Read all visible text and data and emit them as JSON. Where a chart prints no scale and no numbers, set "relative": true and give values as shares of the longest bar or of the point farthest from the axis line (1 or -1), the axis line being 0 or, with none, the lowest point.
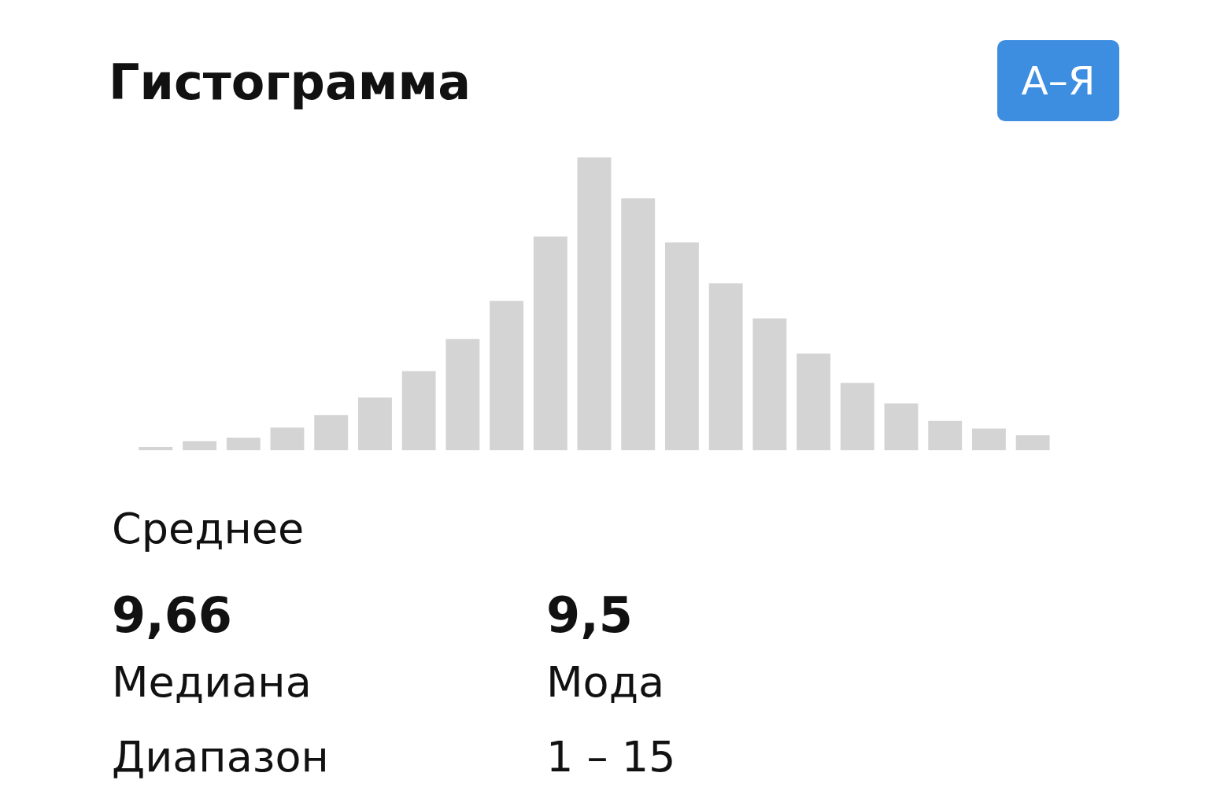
{
  "chart_data": {
    "type": "bar",
    "title": "Гистограмма",
    "relative": true,
    "categories": [
      null,
      null,
      null,
      null,
      null,
      null,
      null,
      null,
      null,
      null,
      null,
      null,
      null,
      null,
      null,
      null,
      null,
      null,
      null,
      null,
      null
    ],
    "values": [
      0.011,
      0.031,
      0.043,
      0.077,
      0.12,
      0.18,
      0.27,
      0.38,
      0.51,
      0.73,
      1,
      0.86,
      0.71,
      0.57,
      0.45,
      0.33,
      0.23,
      0.16,
      0.1,
      0.074,
      0.051
    ],
    "color": "#d4d4d4",
    "annotations": [
      "А–Я",
      "Среднее",
      "9,66",
      "9,5",
      "Медиана",
      "Мода",
      "Диапазон",
      "1 – 15"
    ]
  }
}
